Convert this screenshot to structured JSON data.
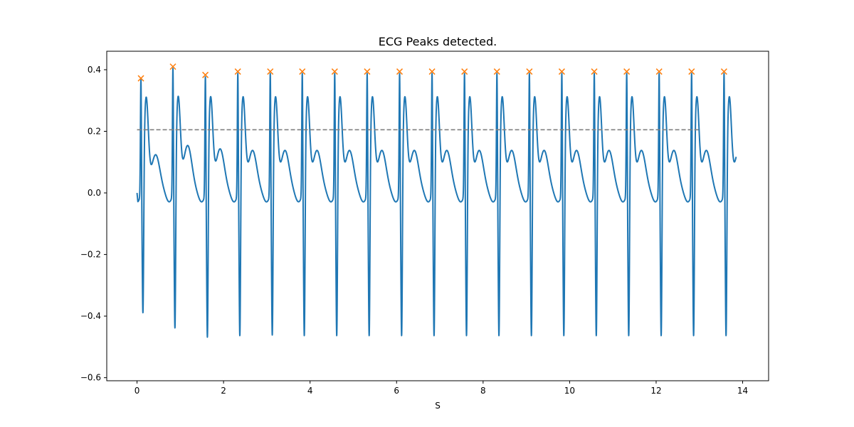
{
  "chart_data": {
    "type": "line",
    "title": "ECG Peaks detected.",
    "xlabel": "S",
    "ylabel": "",
    "xlim": [
      -0.7,
      14.6
    ],
    "ylim": [
      -0.61,
      0.46
    ],
    "xticks": [
      0,
      2,
      4,
      6,
      8,
      10,
      12,
      14
    ],
    "yticks": [
      -0.6,
      -0.4,
      -0.2,
      0.0,
      0.2,
      0.4
    ],
    "ytick_labels": [
      "−0.6",
      "−0.4",
      "−0.2",
      "0.0",
      "0.2",
      "0.4"
    ],
    "grid": false,
    "series": [
      {
        "kind": "ecg-line",
        "color": "#1f77b4",
        "x_range": [
          0.0,
          13.85
        ],
        "beat_times": [
          0.09,
          0.83,
          1.58,
          2.33,
          3.08,
          3.82,
          4.57,
          5.32,
          6.07,
          6.82,
          7.57,
          8.32,
          9.07,
          9.82,
          10.57,
          11.32,
          12.07,
          12.82,
          13.57
        ],
        "peak_heights": [
          0.372,
          0.41,
          0.383,
          0.394,
          0.394,
          0.394,
          0.394,
          0.394,
          0.394,
          0.394,
          0.394,
          0.394,
          0.394,
          0.394,
          0.394,
          0.394,
          0.394,
          0.394,
          0.394
        ],
        "trough_heights": [
          -0.48,
          -0.53,
          -0.56,
          -0.555,
          -0.553,
          -0.555,
          -0.555,
          -0.555,
          -0.555,
          -0.555,
          -0.555,
          -0.555,
          -0.555,
          -0.555,
          -0.555,
          -0.555,
          -0.555,
          -0.555,
          -0.555
        ],
        "t_wave_heights": [
          0.094,
          0.124,
          0.113,
          0.108,
          0.108,
          0.108,
          0.108,
          0.108,
          0.108,
          0.108,
          0.108,
          0.108,
          0.108,
          0.108,
          0.108,
          0.108,
          0.108,
          0.108,
          0.108
        ]
      },
      {
        "kind": "peak-markers",
        "color": "#ff7f0e",
        "marker": "x",
        "x": [
          0.09,
          0.83,
          1.58,
          2.33,
          3.08,
          3.82,
          4.57,
          5.32,
          6.07,
          6.82,
          7.57,
          8.32,
          9.07,
          9.82,
          10.57,
          11.32,
          12.07,
          12.82,
          13.57
        ],
        "y": [
          0.372,
          0.41,
          0.383,
          0.394,
          0.394,
          0.394,
          0.394,
          0.394,
          0.394,
          0.394,
          0.394,
          0.394,
          0.394,
          0.394,
          0.394,
          0.394,
          0.394,
          0.394,
          0.394
        ]
      },
      {
        "kind": "threshold",
        "color": "#808080",
        "style": "dashed",
        "x": [
          0.0,
          13.0
        ],
        "y": 0.205
      }
    ]
  }
}
